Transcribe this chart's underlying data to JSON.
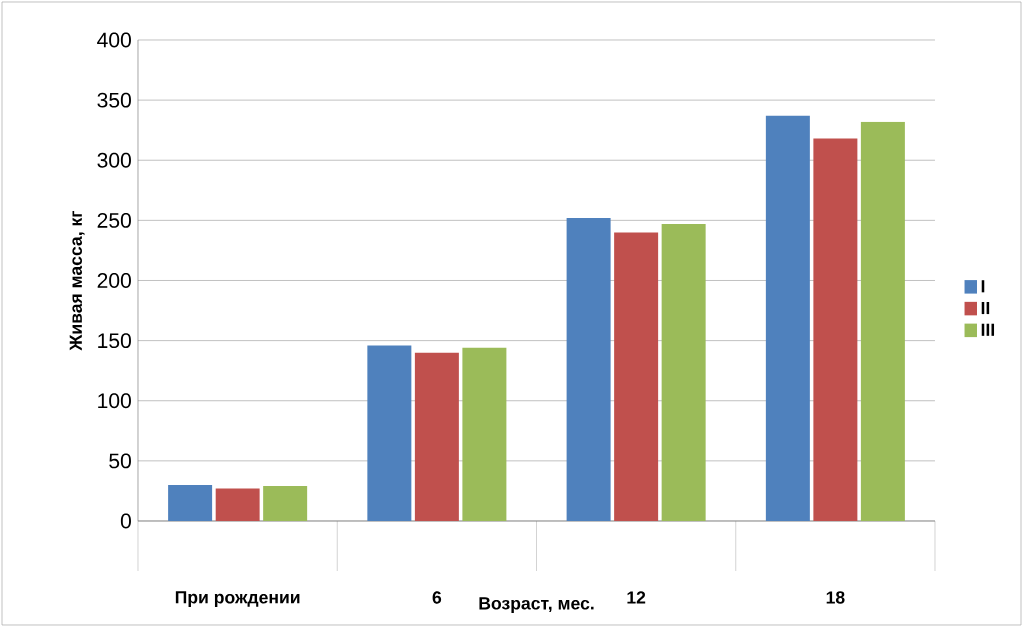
{
  "chart_data": {
    "type": "bar",
    "xlabel": "Возраст, мес.",
    "ylabel": "Живая масса, кг",
    "categories": [
      "При рождении",
      "6",
      "12",
      "18"
    ],
    "series": [
      {
        "name": "I",
        "color": "#4f81bd",
        "values": [
          30,
          146,
          252,
          337
        ]
      },
      {
        "name": "II",
        "color": "#c0504d",
        "values": [
          27,
          140,
          240,
          318
        ]
      },
      {
        "name": "III",
        "color": "#9bbb59",
        "values": [
          29,
          144,
          247,
          332
        ]
      }
    ],
    "ylim": [
      0,
      400
    ],
    "yticks": [
      0,
      50,
      100,
      150,
      200,
      250,
      300,
      350,
      400
    ],
    "grid": "y",
    "legend": "right"
  }
}
